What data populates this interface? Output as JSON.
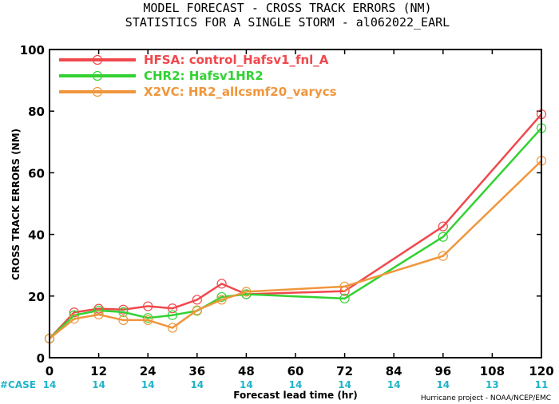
{
  "title_line1": "MODEL FORECAST - CROSS TRACK ERRORS (NM)",
  "title_line2": "STATISTICS FOR A SINGLE STORM - al062022_EARL",
  "case_label": "#CASE",
  "credit": "Hurricane project - NOAA/NCEP/EMC",
  "case_color": "#1fb4c8",
  "chart_data": {
    "type": "line",
    "xlabel": "Forecast lead time (hr)",
    "ylabel": "CROSS TRACK ERRORS (NM)",
    "xlim": [
      0,
      120
    ],
    "ylim": [
      0,
      100
    ],
    "x_ticks": [
      0,
      12,
      24,
      36,
      48,
      60,
      72,
      84,
      96,
      108,
      120
    ],
    "y_ticks": [
      0,
      20,
      40,
      60,
      80,
      100
    ],
    "legend_position": "top-left",
    "grid": false,
    "series": [
      {
        "name": "HFSA: control_Hafsv1_fnl_A",
        "color": "#f0484c",
        "x": [
          0,
          6,
          12,
          18,
          24,
          30,
          36,
          42,
          48,
          72,
          96,
          120
        ],
        "y": [
          6.2,
          14.7,
          15.9,
          15.6,
          16.7,
          16.0,
          18.8,
          24.0,
          20.6,
          21.6,
          42.6,
          79.0
        ]
      },
      {
        "name": "CHR2: Hafsv1HR2",
        "color": "#32d232",
        "x": [
          0,
          6,
          12,
          18,
          24,
          30,
          36,
          42,
          48,
          72,
          96,
          120
        ],
        "y": [
          6.2,
          13.8,
          15.3,
          14.8,
          12.9,
          13.8,
          15.2,
          19.7,
          20.6,
          19.2,
          39.2,
          74.5
        ]
      },
      {
        "name": "X2VC: HR2_allcsmf20_varycs",
        "color": "#f0963c",
        "x": [
          0,
          6,
          12,
          18,
          24,
          30,
          36,
          42,
          48,
          72,
          96,
          120
        ],
        "y": [
          6.2,
          12.6,
          14.0,
          12.2,
          12.2,
          9.7,
          15.4,
          18.8,
          21.4,
          23.1,
          33.0,
          63.9
        ]
      }
    ],
    "cases": [
      {
        "x": 0,
        "label": "14"
      },
      {
        "x": 12,
        "label": "14"
      },
      {
        "x": 24,
        "label": "14"
      },
      {
        "x": 36,
        "label": "14"
      },
      {
        "x": 48,
        "label": "14"
      },
      {
        "x": 60,
        "label": "14"
      },
      {
        "x": 72,
        "label": "14"
      },
      {
        "x": 84,
        "label": "14"
      },
      {
        "x": 96,
        "label": "14"
      },
      {
        "x": 108,
        "label": "13"
      },
      {
        "x": 120,
        "label": "11"
      }
    ]
  }
}
